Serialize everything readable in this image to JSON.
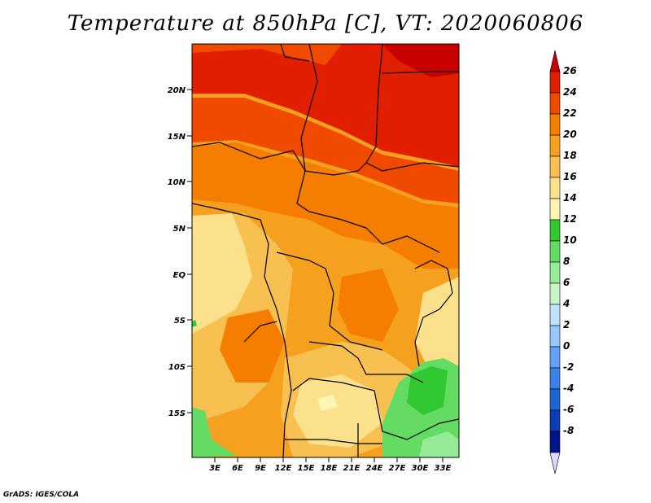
{
  "title": "Temperature at 850hPa [C], VT: 2020060806",
  "footer": "GrADS: IGES/COLA",
  "map": {
    "lat_labels": [
      "20N",
      "15N",
      "10N",
      "5N",
      "EQ",
      "5S",
      "10S",
      "15S"
    ],
    "lon_labels": [
      "3E",
      "6E",
      "9E",
      "12E",
      "15E",
      "18E",
      "21E",
      "24E",
      "27E",
      "30E",
      "33E"
    ]
  },
  "colorbar": {
    "labels": [
      "26",
      "24",
      "22",
      "20",
      "18",
      "16",
      "14",
      "12",
      "10",
      "8",
      "6",
      "4",
      "2",
      "0",
      "-2",
      "-4",
      "-6",
      "-8"
    ],
    "colors": [
      "#c80000",
      "#e11e00",
      "#f04a00",
      "#f57d00",
      "#f5a01e",
      "#f7c050",
      "#fbe18c",
      "#fff5b4",
      "#32c832",
      "#64dc64",
      "#96eb96",
      "#c8f5c8",
      "#bfe3ff",
      "#96c8ff",
      "#64a0f5",
      "#3c82e6",
      "#1e64d2",
      "#0a3cb4",
      "#00148c",
      "#d9d9ff"
    ]
  }
}
